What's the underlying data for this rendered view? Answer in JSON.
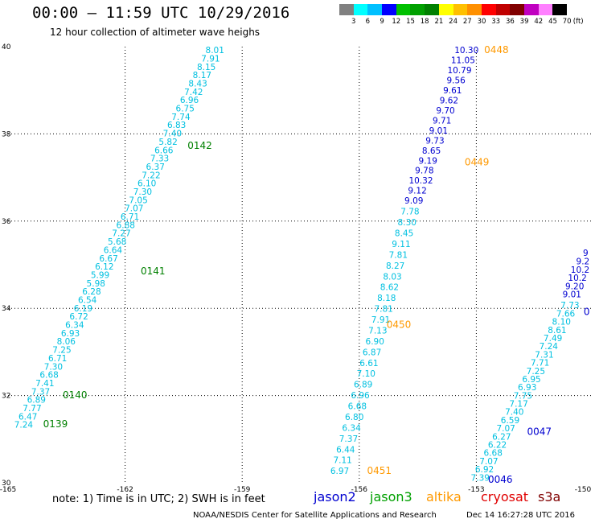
{
  "header": {
    "title": "00:00 – 11:59 UTC 10/29/2016",
    "subtitle": "12 hour collection of altimeter wave heighs"
  },
  "legend": {
    "colors": [
      "#808080",
      "#00ffff",
      "#00c0ff",
      "#0000ff",
      "#00c000",
      "#00a000",
      "#008000",
      "#ffff00",
      "#ffc000",
      "#ff9000",
      "#ff0000",
      "#c00000",
      "#800000",
      "#c000c0",
      "#ff80ff",
      "#000000"
    ],
    "ticks": [
      "3",
      "6",
      "9",
      "12",
      "15",
      "18",
      "21",
      "24",
      "27",
      "30",
      "33",
      "36",
      "39",
      "42",
      "45",
      "70"
    ],
    "unit": "(ft)"
  },
  "chart_data": {
    "type": "scatter",
    "title": "00:00 – 11:59 UTC 10/29/2016",
    "xlim": [
      -165,
      -150
    ],
    "ylim": [
      30,
      40
    ],
    "x_ticks": [
      "-165",
      "-162",
      "-159",
      "-156",
      "-153",
      "-150"
    ],
    "y_ticks": [
      "30",
      "32",
      "34",
      "36",
      "38",
      "40"
    ],
    "grid": true,
    "series": [
      {
        "name": "jason3",
        "color": "#00c0e0",
        "start": [
          -164.6,
          31.26
        ],
        "end": [
          -159.7,
          39.85
        ],
        "values": [
          "7.24",
          "6.47",
          "7.77",
          "6.89",
          "7.37",
          "7.41",
          "6.68",
          "7.30",
          "6.71",
          "7.25",
          "8.06",
          "6.93",
          "6.34",
          "6.72",
          "6.19",
          "6.54",
          "6.28",
          "5.98",
          "5.99",
          "6.12",
          "6.67",
          "6.64",
          "5.68",
          "7.27",
          "6.88",
          "6.71",
          "7.07",
          "7.05",
          "7.30",
          "6.10",
          "7.22",
          "6.37",
          "7.33",
          "6.66",
          "5.82",
          "7.40",
          "6.83",
          "7.74",
          "6.75",
          "6.96",
          "7.42",
          "8.43",
          "8.17",
          "8.15",
          "7.91",
          "8.01"
        ]
      },
      {
        "name": "altika",
        "color": "#00c0e0",
        "start": [
          -156.5,
          30.2
        ],
        "end": [
          -154.7,
          36.15
        ],
        "values": [
          "6.97",
          "7.11",
          "6.44",
          "7.37",
          "6.34",
          "6.80",
          "6.68",
          "6.96",
          "6.89",
          "7.10",
          "6.61",
          "6.87",
          "6.90",
          "7.13",
          "7.91",
          "7.81",
          "8.18",
          "8.62",
          "8.03",
          "8.27",
          "7.81",
          "9.11",
          "8.45",
          "8.30",
          "7.78"
        ]
      },
      {
        "name": "jason2",
        "color": "#0000d0",
        "start": [
          -154.6,
          36.4
        ],
        "end": [
          -153.25,
          39.85
        ],
        "values": [
          "9.09",
          "9.12",
          "10.32",
          "9.78",
          "9.19",
          "8.65",
          "9.73",
          "9.01",
          "9.71",
          "9.70",
          "9.62",
          "9.61",
          "9.56",
          "10.79",
          "11.05",
          "10.30"
        ]
      },
      {
        "name": "jason3",
        "color": "#00c0e0",
        "start": [
          -152.9,
          30.05
        ],
        "end": [
          -150.6,
          34.0
        ],
        "values": [
          "7.39",
          "6.92",
          "7.07",
          "6.68",
          "6.22",
          "6.27",
          "7.07",
          "6.59",
          "7.40",
          "7.17",
          "7.75",
          "6.93",
          "6.95",
          "7.25",
          "7.71",
          "7.31",
          "7.24",
          "7.49",
          "8.61",
          "8.10",
          "7.66",
          "7.73"
        ]
      },
      {
        "name": "jason2",
        "color": "#0000d0",
        "start": [
          -150.55,
          34.25
        ],
        "end": [
          -150.2,
          35.2
        ],
        "values": [
          "9.01",
          "9.20",
          "10.2",
          "10.2",
          "9.2",
          "9"
        ]
      }
    ],
    "annotations": [
      {
        "text": "0139",
        "x": -164.1,
        "y": 31.27,
        "color": "#008000"
      },
      {
        "text": "0140",
        "x": -163.6,
        "y": 31.94,
        "color": "#008000"
      },
      {
        "text": "0141",
        "x": -161.6,
        "y": 34.78,
        "color": "#008000"
      },
      {
        "text": "0142",
        "x": -160.4,
        "y": 37.66,
        "color": "#008000"
      },
      {
        "text": "0448",
        "x": -152.8,
        "y": 39.85,
        "color": "#ff9900"
      },
      {
        "text": "0449",
        "x": -153.3,
        "y": 37.28,
        "color": "#ff9900"
      },
      {
        "text": "0450",
        "x": -155.3,
        "y": 33.55,
        "color": "#ff9900"
      },
      {
        "text": "0451",
        "x": -155.8,
        "y": 30.2,
        "color": "#ff9900"
      },
      {
        "text": "0047",
        "x": -151.7,
        "y": 31.1,
        "color": "#0000d0"
      },
      {
        "text": "0046",
        "x": -152.7,
        "y": 30.0,
        "color": "#0000d0"
      },
      {
        "text": "0",
        "x": -150.25,
        "y": 33.85,
        "color": "#0000d0"
      }
    ]
  },
  "footer": {
    "note": "note: 1) Time is in UTC; 2) SWH is in feet",
    "sats": [
      {
        "label": "jason2",
        "color": "#0000d0"
      },
      {
        "label": "jason3",
        "color": "#00a000"
      },
      {
        "label": "altika",
        "color": "#ff9900"
      },
      {
        "label": "cryosat",
        "color": "#e00000"
      },
      {
        "label": "s3a",
        "color": "#800000"
      }
    ],
    "credit": "NOAA/NESDIS Center for Satellite Applications and Research",
    "timestamp": "Dec 14 16:27:28 UTC 2016"
  }
}
